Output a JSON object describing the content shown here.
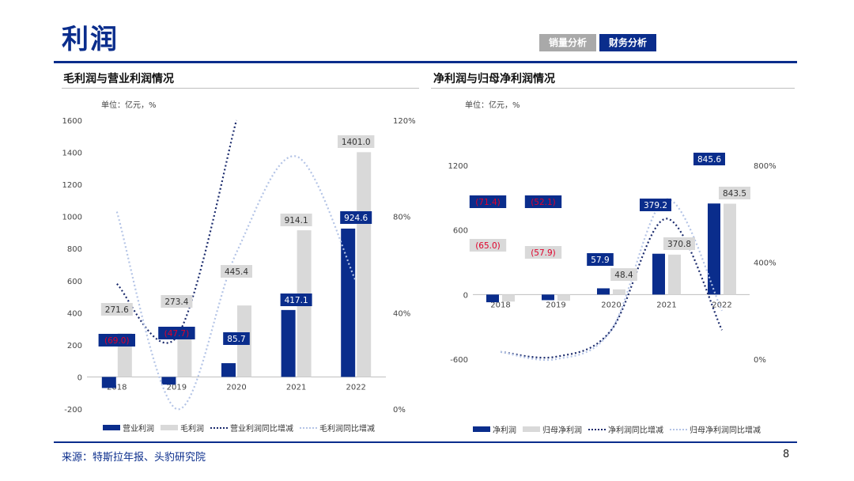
{
  "page": {
    "title": "利润",
    "page_number": "8",
    "source": "来源：特斯拉年报、头豹研究院"
  },
  "tabs": [
    {
      "label": "销量分析",
      "active": false
    },
    {
      "label": "财务分析",
      "active": true
    }
  ],
  "colors": {
    "navy": "#0a2d8c",
    "gray_bar": "#d9d9d9",
    "dark_dotted": "#1a2a6c",
    "light_dotted": "#b4c4e6",
    "neg_label": "#e0002a"
  },
  "chart_data": [
    {
      "type": "bar",
      "title": "毛利润与营业利润情况",
      "unit": "单位：亿元，%",
      "categories": [
        "2018",
        "2019",
        "2020",
        "2021",
        "2022"
      ],
      "y_left": {
        "min": -200,
        "max": 1600,
        "ticks": [
          -200,
          0,
          200,
          400,
          600,
          800,
          1000,
          1200,
          1400,
          1600
        ]
      },
      "y_right": {
        "min": 0,
        "max": 120,
        "ticks": [
          "0%",
          "40%",
          "80%",
          "120%"
        ],
        "tick_values": [
          0,
          40,
          80,
          120
        ]
      },
      "series": [
        {
          "name": "营业利润",
          "kind": "bar",
          "values": [
            -69.0,
            -47.7,
            85.7,
            417.1,
            924.6
          ],
          "labels": [
            "(69.0)",
            "(47.7)",
            "85.7",
            "417.1",
            "924.6"
          ]
        },
        {
          "name": "毛利润",
          "kind": "bar",
          "values": [
            271.6,
            273.4,
            445.4,
            914.1,
            1401.0
          ],
          "labels": [
            "271.6",
            "273.4",
            "445.4",
            "914.1",
            "1401.0"
          ]
        },
        {
          "name": "营业利润同比增减",
          "kind": "line",
          "style": "dark-dotted",
          "values": [
            52,
            30,
            120,
            null,
            null
          ]
        },
        {
          "name": "毛利润同比增减",
          "kind": "line",
          "style": "light-dotted",
          "values": [
            82,
            0,
            65,
            105,
            53
          ]
        }
      ]
    },
    {
      "type": "bar",
      "title": "净利润与归母净利润情况",
      "unit": "单位：亿元，%",
      "categories": [
        "2018",
        "2019",
        "2020",
        "2021",
        "2022"
      ],
      "y_left": {
        "min": -600,
        "max": 1200,
        "ticks": [
          -600,
          0,
          600,
          1200
        ]
      },
      "y_right": {
        "min": 0,
        "max": 800,
        "ticks": [
          "0%",
          "400%",
          "800%"
        ],
        "tick_values": [
          0,
          400,
          800
        ]
      },
      "series": [
        {
          "name": "净利润",
          "kind": "bar",
          "values": [
            -71.4,
            -52.1,
            57.9,
            379.2,
            845.6
          ],
          "labels": [
            "(71.4)",
            "(52.1)",
            "57.9",
            "379.2",
            "845.6"
          ]
        },
        {
          "name": "归母净利润",
          "kind": "bar",
          "values": [
            -65.0,
            -57.9,
            48.4,
            370.8,
            843.5
          ],
          "labels": [
            "(65.0)",
            "(57.9)",
            "48.4",
            "370.8",
            "843.5"
          ]
        },
        {
          "name": "净利润同比增减",
          "kind": "line",
          "style": "dark-dotted",
          "values": [
            30,
            10,
            120,
            580,
            120
          ]
        },
        {
          "name": "归母净利润同比增减",
          "kind": "line",
          "style": "light-dotted",
          "values": [
            30,
            0,
            120,
            660,
            200
          ]
        }
      ]
    }
  ]
}
